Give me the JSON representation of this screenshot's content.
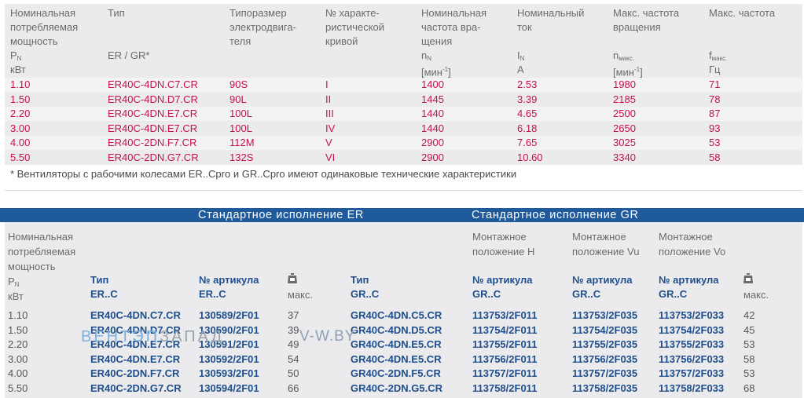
{
  "table1": {
    "headers": {
      "power": [
        "Номинальная",
        "потребляемая",
        "мощность"
      ],
      "power_sym": "P",
      "power_sub": "N",
      "power_unit": "кВт",
      "type": "Тип",
      "type_sub": "ER / GR*",
      "size": [
        "Типоразмер",
        "электродвига-",
        "теля"
      ],
      "curve": [
        "№ характе-",
        "ристической",
        "кривой"
      ],
      "speed": [
        "Номинальная",
        "частота вра-",
        "щения"
      ],
      "speed_sym": "n",
      "speed_sub": "N",
      "speed_unit": "[мин",
      "speed_unit_sup": "-1",
      "speed_unit_end": "]",
      "current": [
        "Номинальный",
        "ток"
      ],
      "current_sym": "I",
      "current_sub": "N",
      "current_unit": "A",
      "maxspeed": [
        "Макс. частота",
        "вращения"
      ],
      "maxspeed_sym": "n",
      "maxspeed_sub": "макс.",
      "maxspeed_unit": "[мин",
      "maxspeed_unit_sup": "-1",
      "maxspeed_unit_end": "]",
      "maxfreq": [
        "Макс. частота"
      ],
      "maxfreq_sym": "f",
      "maxfreq_sub": "макс.",
      "maxfreq_unit": "Гц"
    },
    "rows": [
      [
        "1.10",
        "ER40C-4DN.C7.CR",
        "90S",
        "I",
        "1400",
        "2.53",
        "1980",
        "71"
      ],
      [
        "1.50",
        "ER40C-4DN.D7.CR",
        "90L",
        "II",
        "1445",
        "3.39",
        "2185",
        "78"
      ],
      [
        "2.20",
        "ER40C-4DN.E7.CR",
        "100L",
        "III",
        "1440",
        "4.65",
        "2500",
        "87"
      ],
      [
        "3.00",
        "ER40C-4DN.E7.CR",
        "100L",
        "IV",
        "1440",
        "6.18",
        "2650",
        "93"
      ],
      [
        "4.00",
        "ER40C-2DN.F7.CR",
        "112M",
        "V",
        "2900",
        "7.65",
        "3025",
        "53"
      ],
      [
        "5.50",
        "ER40C-2DN.G7.CR",
        "132S",
        "VI",
        "2900",
        "10.60",
        "3340",
        "58"
      ]
    ],
    "footnote": "* Вентиляторы с рабочими колесами ER..Cpro и GR..Cpro имеют одинаковые технические характеристики"
  },
  "table2": {
    "title_er": "Стандартное исполнение ER",
    "title_gr": "Стандартное исполнение GR",
    "power": [
      "Номинальная",
      "потребляемая",
      "мощность"
    ],
    "power_sym": "P",
    "power_sub": "N",
    "power_unit": "кВт",
    "mount_h": [
      "Монтажное",
      "положение H"
    ],
    "mount_vu": [
      "Монтажное",
      "положение Vu"
    ],
    "mount_vo": [
      "Монтажное",
      "положение Vo"
    ],
    "type_er": [
      "Тип",
      "ER..C"
    ],
    "art_er": [
      "№ артикула",
      "ER..C"
    ],
    "max_label": "макс.",
    "type_gr": [
      "Тип",
      "GR..C"
    ],
    "art_h": [
      "№ артикула",
      "GR..C"
    ],
    "art_vu": [
      "№ артикула",
      "GR..C"
    ],
    "art_vo": [
      "№ артикула",
      "GR..C"
    ],
    "rows": [
      [
        "1.10",
        "ER40C-4DN.C7.CR",
        "130589/2F01",
        "37",
        "GR40C-4DN.C5.CR",
        "113753/2F011",
        "113753/2F035",
        "113753/2F033",
        "42"
      ],
      [
        "1.50",
        "ER40C-4DN.D7.CR",
        "130590/2F01",
        "39",
        "GR40C-4DN.D5.CR",
        "113754/2F011",
        "113754/2F035",
        "113754/2F033",
        "45"
      ],
      [
        "2.20",
        "ER40C-4DN.E7.CR",
        "130591/2F01",
        "49",
        "GR40C-4DN.E5.CR",
        "113755/2F011",
        "113755/2F035",
        "113755/2F033",
        "53"
      ],
      [
        "3.00",
        "ER40C-4DN.E7.CR",
        "130592/2F01",
        "54",
        "GR40C-4DN.E5.CR",
        "113756/2F011",
        "113756/2F035",
        "113756/2F033",
        "58"
      ],
      [
        "4.00",
        "ER40C-2DN.F7.CR",
        "130593/2F01",
        "50",
        "GR40C-2DN.F5.CR",
        "113757/2F011",
        "113757/2F035",
        "113757/2F033",
        "53"
      ],
      [
        "5.50",
        "ER40C-2DN.G7.CR",
        "130594/2F01",
        "66",
        "GR40C-2DN.G5.CR",
        "113758/2F011",
        "113758/2F035",
        "113758/2F033",
        "68"
      ]
    ]
  },
  "watermark": {
    "part1": "ВЕНТЭП",
    "part2": "ЗАПАД",
    "part3": "V-W.BY"
  },
  "colors": {
    "pink": "#c8104e",
    "blue_band": "#1e5a9c",
    "blue_text": "#1f4e8c"
  }
}
